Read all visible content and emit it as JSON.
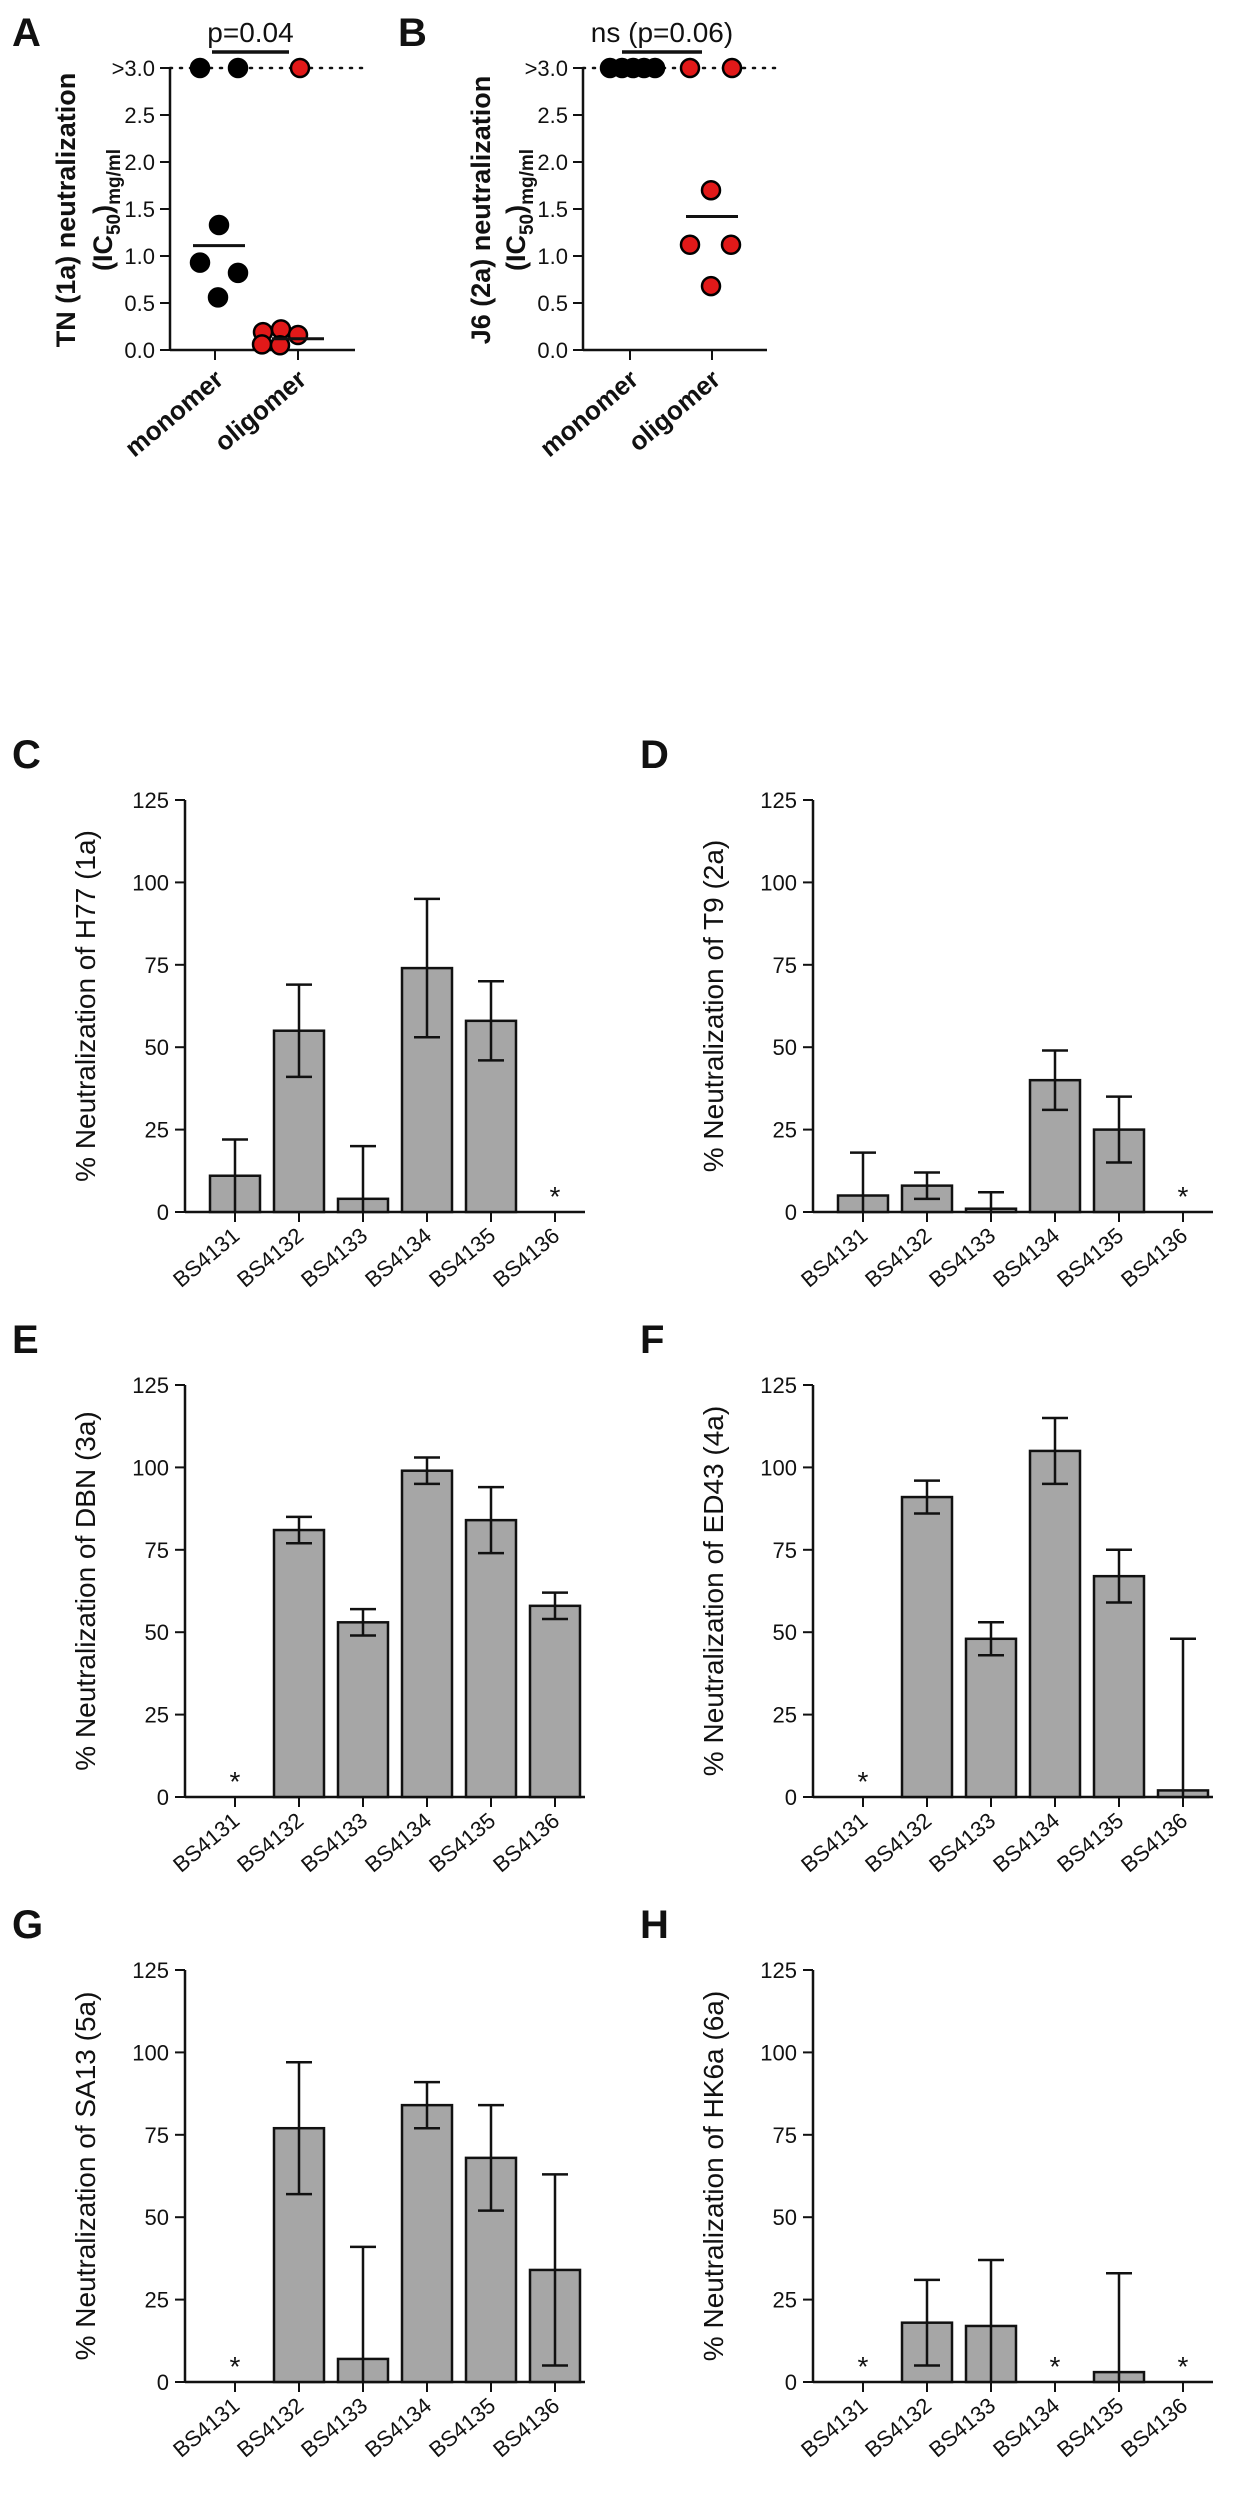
{
  "colors": {
    "ink": "#111111",
    "bar_fill": "#a6a6a6",
    "monomer": "#000000",
    "oligomer": "#e11919"
  },
  "chart_data": [
    {
      "id": "A",
      "type": "scatter",
      "panel_label": "A",
      "ylabel_line1": "TN (1a) neutralization",
      "ylabel_line2_main": "(IC",
      "ylabel_line2_sub1": "50",
      "ylabel_line2_post": ")",
      "ylabel_line2_sub2": "mg/ml",
      "ylim": [
        0,
        3.0
      ],
      "yticks": [
        0.0,
        0.5,
        1.0,
        1.5,
        2.0,
        2.5
      ],
      "ytick_labels": [
        "0.0",
        "0.5",
        "1.0",
        "1.5",
        "2.0",
        "2.5"
      ],
      "cap_label": ">3.0",
      "categories": [
        "monomer",
        "oligomer"
      ],
      "stat_label": "p=0.04",
      "series": [
        {
          "name": "monomer",
          "color": "#000000",
          "values": [
            1.33,
            0.93,
            0.82,
            0.56
          ],
          "above_cap": 2,
          "mean": 1.11
        },
        {
          "name": "oligomer",
          "color": "#e11919",
          "values": [
            0.22,
            0.19,
            0.16,
            0.06,
            0.05
          ],
          "above_cap": 1,
          "mean": 0.12
        }
      ]
    },
    {
      "id": "B",
      "type": "scatter",
      "panel_label": "B",
      "ylabel_line1": "J6 (2a) neutralization",
      "ylabel_line2_main": "(IC",
      "ylabel_line2_sub1": "50",
      "ylabel_line2_post": ")",
      "ylabel_line2_sub2": "mg/ml",
      "ylim": [
        0,
        3.0
      ],
      "yticks": [
        0.0,
        0.5,
        1.0,
        1.5,
        2.0,
        2.5
      ],
      "ytick_labels": [
        "0.0",
        "0.5",
        "1.0",
        "1.5",
        "2.0",
        "2.5"
      ],
      "cap_label": ">3.0",
      "categories": [
        "monomer",
        "oligomer"
      ],
      "stat_label": "ns (p=0.06)",
      "series": [
        {
          "name": "monomer",
          "color": "#000000",
          "values": [],
          "above_cap": 5,
          "mean": null
        },
        {
          "name": "oligomer",
          "color": "#e11919",
          "values": [
            1.7,
            1.12,
            1.12,
            0.68
          ],
          "above_cap": 2,
          "mean": 1.42
        }
      ]
    },
    {
      "id": "C",
      "type": "bar",
      "panel_label": "C",
      "ylabel": "% Neutralization of H77 (1a)",
      "categories": [
        "BS4131",
        "BS4132",
        "BS4133",
        "BS4134",
        "BS4135",
        "BS4136"
      ],
      "values": [
        11,
        55,
        4,
        74,
        58,
        0
      ],
      "errors": [
        11,
        14,
        16,
        21,
        12,
        0
      ],
      "star": [
        false,
        false,
        false,
        false,
        false,
        true
      ],
      "star_label": "*",
      "ylim": [
        0,
        125
      ],
      "yticks": [
        0,
        25,
        50,
        75,
        100,
        125
      ],
      "ytick_labels": [
        "0",
        "25",
        "50",
        "75",
        "100",
        "125"
      ]
    },
    {
      "id": "D",
      "type": "bar",
      "panel_label": "D",
      "ylabel": "% Neutralization of T9 (2a)",
      "categories": [
        "BS4131",
        "BS4132",
        "BS4133",
        "BS4134",
        "BS4135",
        "BS4136"
      ],
      "values": [
        5,
        8,
        1,
        40,
        25,
        0
      ],
      "errors": [
        13,
        4,
        5,
        9,
        10,
        0
      ],
      "star": [
        false,
        false,
        false,
        false,
        false,
        true
      ],
      "star_label": "*",
      "ylim": [
        0,
        125
      ],
      "yticks": [
        0,
        25,
        50,
        75,
        100,
        125
      ],
      "ytick_labels": [
        "0",
        "25",
        "50",
        "75",
        "100",
        "125"
      ]
    },
    {
      "id": "E",
      "type": "bar",
      "panel_label": "E",
      "ylabel": "% Neutralization of DBN (3a)",
      "categories": [
        "BS4131",
        "BS4132",
        "BS4133",
        "BS4134",
        "BS4135",
        "BS4136"
      ],
      "values": [
        0,
        81,
        53,
        99,
        84,
        58
      ],
      "errors": [
        0,
        4,
        4,
        4,
        10,
        4
      ],
      "star": [
        true,
        false,
        false,
        false,
        false,
        false
      ],
      "star_label": "*",
      "ylim": [
        0,
        125
      ],
      "yticks": [
        0,
        25,
        50,
        75,
        100,
        125
      ],
      "ytick_labels": [
        "0",
        "25",
        "50",
        "75",
        "100",
        "125"
      ]
    },
    {
      "id": "F",
      "type": "bar",
      "panel_label": "F",
      "ylabel": "% Neutralization of ED43 (4a)",
      "categories": [
        "BS4131",
        "BS4132",
        "BS4133",
        "BS4134",
        "BS4135",
        "BS4136"
      ],
      "values": [
        0,
        91,
        48,
        105,
        67,
        2
      ],
      "errors": [
        0,
        5,
        5,
        10,
        8,
        46
      ],
      "star": [
        true,
        false,
        false,
        false,
        false,
        false
      ],
      "star_label": "*",
      "ylim": [
        0,
        125
      ],
      "yticks": [
        0,
        25,
        50,
        75,
        100,
        125
      ],
      "ytick_labels": [
        "0",
        "25",
        "50",
        "75",
        "100",
        "125"
      ]
    },
    {
      "id": "G",
      "type": "bar",
      "panel_label": "G",
      "ylabel": "% Neutralization of SA13 (5a)",
      "categories": [
        "BS4131",
        "BS4132",
        "BS4133",
        "BS4134",
        "BS4135",
        "BS4136"
      ],
      "values": [
        0,
        77,
        7,
        84,
        68,
        34
      ],
      "errors": [
        0,
        20,
        34,
        7,
        16,
        29
      ],
      "star": [
        true,
        false,
        false,
        false,
        false,
        false
      ],
      "star_label": "*",
      "ylim": [
        0,
        125
      ],
      "yticks": [
        0,
        25,
        50,
        75,
        100,
        125
      ],
      "ytick_labels": [
        "0",
        "25",
        "50",
        "75",
        "100",
        "125"
      ]
    },
    {
      "id": "H",
      "type": "bar",
      "panel_label": "H",
      "ylabel": "% Neutralization of HK6a (6a)",
      "categories": [
        "BS4131",
        "BS4132",
        "BS4133",
        "BS4134",
        "BS4135",
        "BS4136"
      ],
      "values": [
        0,
        18,
        17,
        0,
        3,
        0
      ],
      "errors": [
        0,
        13,
        20,
        0,
        30,
        0
      ],
      "star": [
        true,
        false,
        false,
        true,
        false,
        true
      ],
      "star_label": "*",
      "ylim": [
        0,
        125
      ],
      "yticks": [
        0,
        25,
        50,
        75,
        100,
        125
      ],
      "ytick_labels": [
        "0",
        "25",
        "50",
        "75",
        "100",
        "125"
      ]
    }
  ]
}
